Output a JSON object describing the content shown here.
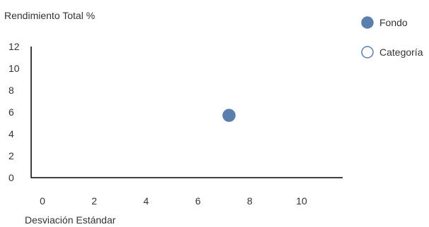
{
  "chart_data": {
    "type": "scatter",
    "ylabel": "Rendimiento Total %",
    "xlabel": "Desviación Estándar",
    "xlim": [
      -0.5,
      11.5
    ],
    "ylim": [
      0,
      12
    ],
    "x_ticks": [
      0,
      2,
      4,
      6,
      8,
      10
    ],
    "y_ticks": [
      0,
      2,
      4,
      6,
      8,
      10,
      12
    ],
    "grid": false,
    "legend_position": "top-right",
    "series": [
      {
        "name": "Fondo",
        "marker": "filled-circle",
        "color": "#5b7fad",
        "points": [
          {
            "x": 7.2,
            "y": 5.7
          }
        ]
      },
      {
        "name": "Categoría",
        "marker": "hollow-circle",
        "color": "#5b7fad",
        "points": []
      }
    ]
  }
}
